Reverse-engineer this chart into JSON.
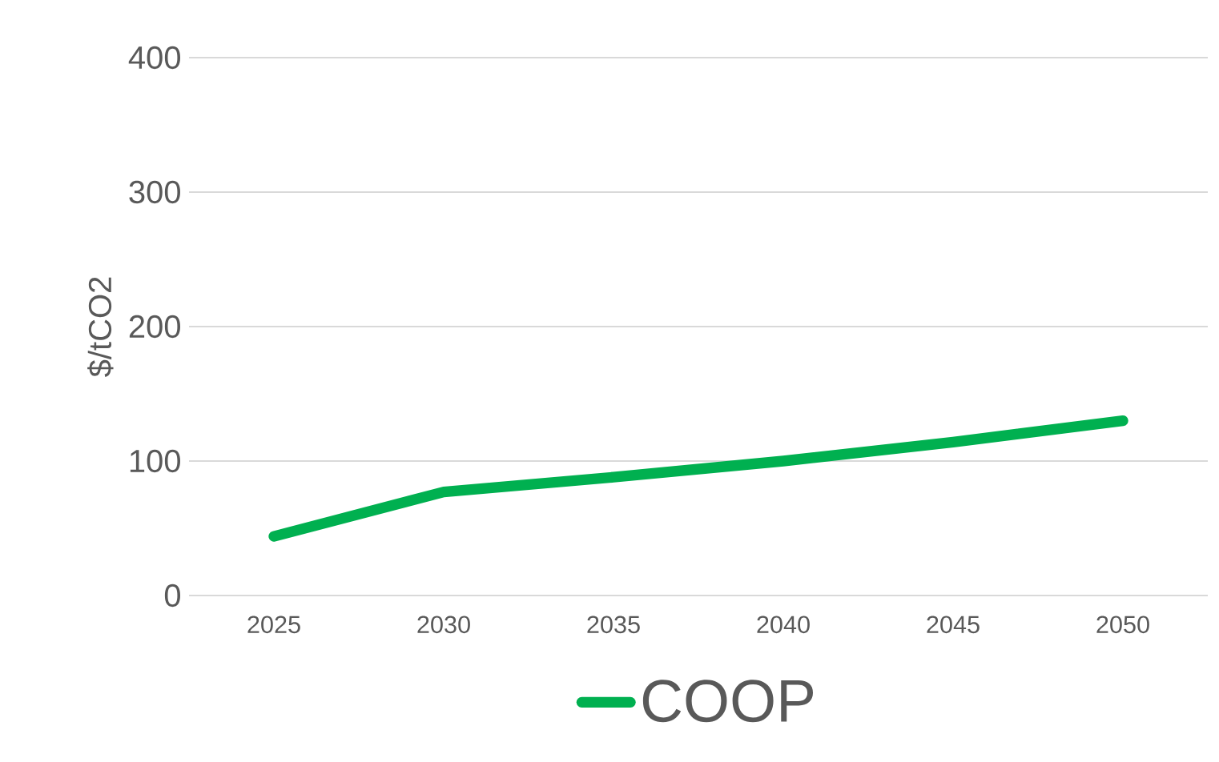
{
  "chart_data": {
    "type": "line",
    "ylabel": "$/tCO2",
    "categories": [
      "2025",
      "2030",
      "2035",
      "2040",
      "2045",
      "2050"
    ],
    "series": [
      {
        "name": "COOP",
        "color": "#00b050",
        "values": [
          44,
          77,
          88,
          100,
          114,
          130
        ]
      }
    ],
    "ylim": [
      0,
      400
    ],
    "yticks": [
      0,
      100,
      200,
      300,
      400
    ],
    "grid": "y",
    "legend": "bottom",
    "marker": "none",
    "line_style": "solid"
  }
}
